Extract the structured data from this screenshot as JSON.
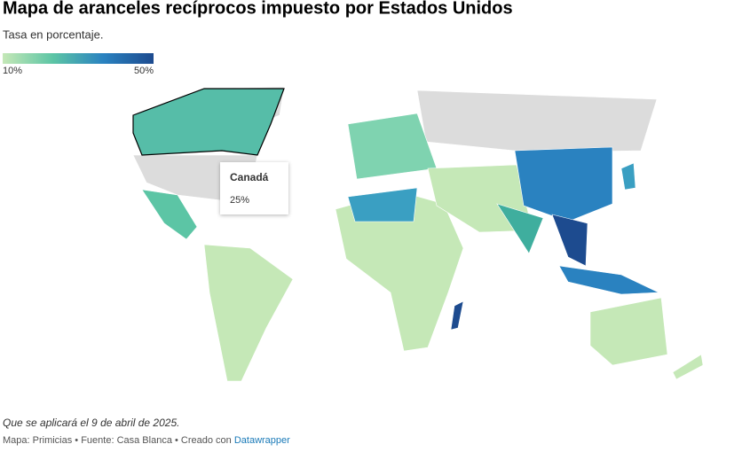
{
  "header": {
    "title": "Mapa de aranceles recíprocos impuesto por Estados Unidos",
    "subtitle": "Tasa en porcentaje."
  },
  "legend": {
    "min": {
      "value": 10,
      "label": "10%"
    },
    "max": {
      "value": 50,
      "label": "50%"
    },
    "colors": [
      "#c5e8b7",
      "#5cc5a5",
      "#2a82c0",
      "#1d4b8f"
    ]
  },
  "tooltip": {
    "name": "Canadá",
    "value": 25,
    "label": "25%"
  },
  "footer": {
    "note": "Que se aplicará el 9 de abril de 2025.",
    "source": "Mapa: Primicias • Fuente: Casa Blanca • Creado con",
    "link": "Datawrapper"
  }
}
